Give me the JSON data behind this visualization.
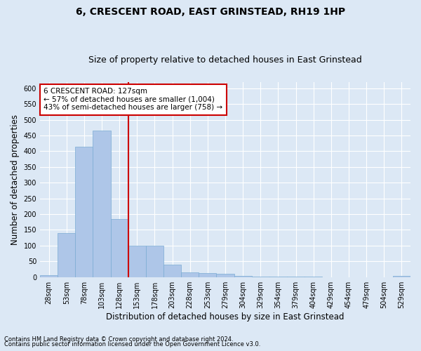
{
  "title": "6, CRESCENT ROAD, EAST GRINSTEAD, RH19 1HP",
  "subtitle": "Size of property relative to detached houses in East Grinstead",
  "xlabel": "Distribution of detached houses by size in East Grinstead",
  "ylabel": "Number of detached properties",
  "categories": [
    "28sqm",
    "53sqm",
    "78sqm",
    "103sqm",
    "128sqm",
    "153sqm",
    "178sqm",
    "203sqm",
    "228sqm",
    "253sqm",
    "279sqm",
    "304sqm",
    "329sqm",
    "354sqm",
    "379sqm",
    "404sqm",
    "429sqm",
    "454sqm",
    "479sqm",
    "504sqm",
    "529sqm"
  ],
  "values": [
    5,
    140,
    415,
    465,
    185,
    100,
    100,
    40,
    15,
    12,
    10,
    3,
    1,
    1,
    1,
    1,
    0,
    0,
    0,
    0,
    3
  ],
  "bar_color": "#aec6e8",
  "bar_edge_color": "#7bacd4",
  "property_line_color": "#cc0000",
  "annotation_text": "6 CRESCENT ROAD: 127sqm\n← 57% of detached houses are smaller (1,004)\n43% of semi-detached houses are larger (758) →",
  "annotation_box_color": "#ffffff",
  "annotation_box_edge_color": "#cc0000",
  "footnote1": "Contains HM Land Registry data © Crown copyright and database right 2024.",
  "footnote2": "Contains public sector information licensed under the Open Government Licence v3.0.",
  "ylim": [
    0,
    620
  ],
  "yticks": [
    0,
    50,
    100,
    150,
    200,
    250,
    300,
    350,
    400,
    450,
    500,
    550,
    600
  ],
  "background_color": "#dce8f5",
  "plot_bg_color": "#dce8f5",
  "grid_color": "#ffffff",
  "title_fontsize": 10,
  "subtitle_fontsize": 9,
  "tick_fontsize": 7,
  "label_fontsize": 8.5,
  "annotation_fontsize": 7.5,
  "footnote_fontsize": 6
}
